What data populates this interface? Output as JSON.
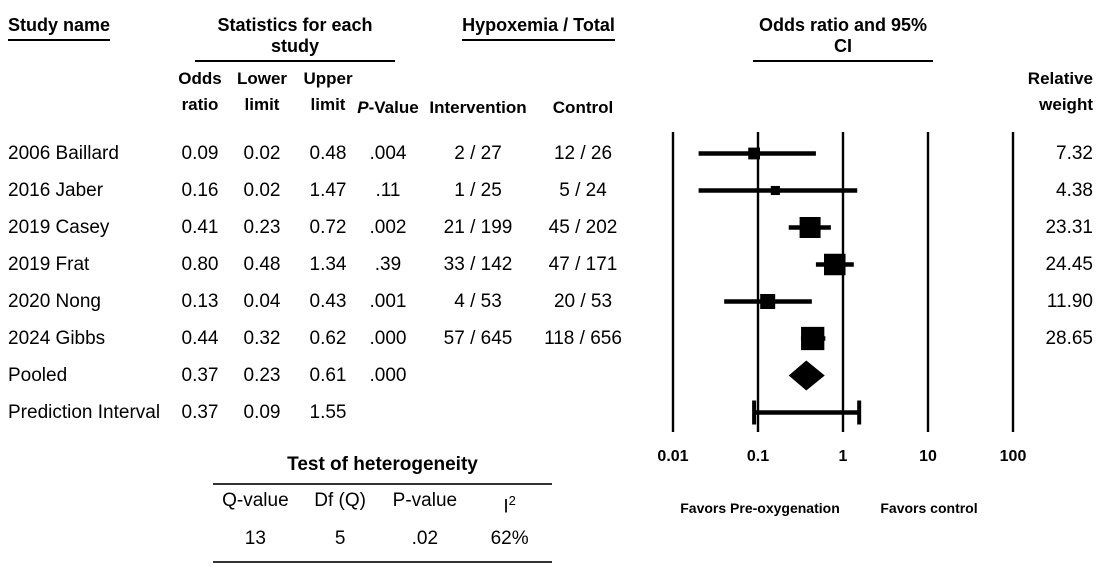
{
  "figure": {
    "titles": {
      "study": "Study name",
      "stats": "Statistics for each study",
      "hypoxemia": "Hypoxemia / Total",
      "or_ci": "Odds ratio and 95% CI"
    },
    "columns": {
      "or": "Odds\nratio",
      "lower": "Lower\nlimit",
      "upper": "Upper\nlimit",
      "p_italic": "P",
      "p_rest": "-Value",
      "intervention": "Intervention",
      "control": "Control",
      "weight": "Relative\nweight"
    },
    "rows": [
      {
        "study": "2006 Baillard",
        "or": "0.09",
        "lower": "0.02",
        "upper": "0.48",
        "p": ".004",
        "intervention": "2 / 27",
        "control": "12 / 26",
        "weight": "7.32"
      },
      {
        "study": "2016 Jaber",
        "or": "0.16",
        "lower": "0.02",
        "upper": "1.47",
        "p": ".11",
        "intervention": "1 / 25",
        "control": "5 / 24",
        "weight": "4.38"
      },
      {
        "study": "2019 Casey",
        "or": "0.41",
        "lower": "0.23",
        "upper": "0.72",
        "p": ".002",
        "intervention": "21 / 199",
        "control": "45 / 202",
        "weight": "23.31"
      },
      {
        "study": "2019 Frat",
        "or": "0.80",
        "lower": "0.48",
        "upper": "1.34",
        "p": ".39",
        "intervention": "33 / 142",
        "control": "47 / 171",
        "weight": "24.45"
      },
      {
        "study": "2020 Nong",
        "or": "0.13",
        "lower": "0.04",
        "upper": "0.43",
        "p": ".001",
        "intervention": "4 / 53",
        "control": "20 / 53",
        "weight": "11.90"
      },
      {
        "study": "2024 Gibbs",
        "or": "0.44",
        "lower": "0.32",
        "upper": "0.62",
        "p": ".000",
        "intervention": "57 / 645",
        "control": "118 / 656",
        "weight": "28.65"
      },
      {
        "study": "Pooled",
        "or": "0.37",
        "lower": "0.23",
        "upper": "0.61",
        "p": ".000",
        "intervention": "",
        "control": "",
        "weight": ""
      },
      {
        "study": "Prediction Interval",
        "or": "0.37",
        "lower": "0.09",
        "upper": "1.55",
        "p": "",
        "intervention": "",
        "control": "",
        "weight": ""
      }
    ],
    "heterogeneity": {
      "title": "Test of heterogeneity",
      "headers": [
        {
          "text": "Q-value"
        },
        {
          "text": "Df (Q)"
        },
        {
          "text": "P-value"
        },
        {
          "text": "I",
          "sup": "2"
        }
      ],
      "values": [
        "13",
        "5",
        ".02",
        "62%"
      ]
    },
    "axis": {
      "tick_labels": [
        "0.01",
        "0.1",
        "1",
        "10",
        "100"
      ],
      "favors_left": "Favors Pre-oxygenation",
      "favors_right": "Favors control"
    }
  },
  "chart_data": {
    "type": "scatter",
    "style": "forest-plot",
    "title": "Odds ratio and 95% CI",
    "x_scale": "log10",
    "x_range": [
      0.01,
      100
    ],
    "x_ticks": [
      0.01,
      0.1,
      1,
      10,
      100
    ],
    "x_tick_labels": [
      "0.01",
      "0.1",
      "1",
      "10",
      "100"
    ],
    "gridlines": true,
    "series": [
      {
        "name": "2006 Baillard",
        "or": 0.09,
        "ci_low": 0.02,
        "ci_high": 0.48,
        "p_value": 0.004,
        "hypoxemia_intervention": "2 / 27",
        "hypoxemia_control": "12 / 26",
        "relative_weight": 7.32,
        "marker": "square"
      },
      {
        "name": "2016 Jaber",
        "or": 0.16,
        "ci_low": 0.02,
        "ci_high": 1.47,
        "p_value": 0.11,
        "hypoxemia_intervention": "1 / 25",
        "hypoxemia_control": "5 / 24",
        "relative_weight": 4.38,
        "marker": "square"
      },
      {
        "name": "2019 Casey",
        "or": 0.41,
        "ci_low": 0.23,
        "ci_high": 0.72,
        "p_value": 0.002,
        "hypoxemia_intervention": "21 / 199",
        "hypoxemia_control": "45 / 202",
        "relative_weight": 23.31,
        "marker": "square"
      },
      {
        "name": "2019 Frat",
        "or": 0.8,
        "ci_low": 0.48,
        "ci_high": 1.34,
        "p_value": 0.39,
        "hypoxemia_intervention": "33 / 142",
        "hypoxemia_control": "47 / 171",
        "relative_weight": 24.45,
        "marker": "square"
      },
      {
        "name": "2020 Nong",
        "or": 0.13,
        "ci_low": 0.04,
        "ci_high": 0.43,
        "p_value": 0.001,
        "hypoxemia_intervention": "4 / 53",
        "hypoxemia_control": "20 / 53",
        "relative_weight": 11.9,
        "marker": "square"
      },
      {
        "name": "2024 Gibbs",
        "or": 0.44,
        "ci_low": 0.32,
        "ci_high": 0.62,
        "p_value": 0.0,
        "hypoxemia_intervention": "57 / 645",
        "hypoxemia_control": "118 / 656",
        "relative_weight": 28.65,
        "marker": "square"
      },
      {
        "name": "Pooled",
        "or": 0.37,
        "ci_low": 0.23,
        "ci_high": 0.61,
        "p_value": 0.0,
        "marker": "diamond"
      },
      {
        "name": "Prediction Interval",
        "or": 0.37,
        "ci_low": 0.09,
        "ci_high": 1.55,
        "marker": "interval"
      }
    ],
    "heterogeneity": {
      "q_value": 13,
      "df_q": 5,
      "p_value": 0.02,
      "i_squared_pct": 62
    },
    "footer_left": "Favors Pre-oxygenation",
    "footer_right": "Favors control"
  }
}
